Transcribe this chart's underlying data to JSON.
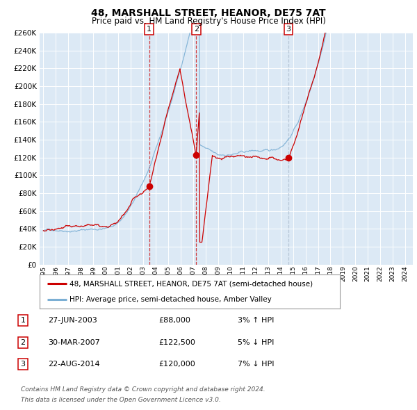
{
  "title": "48, MARSHALL STREET, HEANOR, DE75 7AT",
  "subtitle": "Price paid vs. HM Land Registry's House Price Index (HPI)",
  "plot_bg_color": "#dce9f5",
  "red_line_color": "#cc0000",
  "blue_line_color": "#7bafd4",
  "sale_marker_color": "#cc0000",
  "ylim": [
    0,
    260000
  ],
  "yticks": [
    0,
    20000,
    40000,
    60000,
    80000,
    100000,
    120000,
    140000,
    160000,
    180000,
    200000,
    220000,
    240000,
    260000
  ],
  "sales": [
    {
      "date_num": 2003.48,
      "price": 88000,
      "label": "1",
      "vline_color": "#cc0000"
    },
    {
      "date_num": 2007.24,
      "price": 122500,
      "label": "2",
      "vline_color": "#cc0000"
    },
    {
      "date_num": 2014.64,
      "price": 120000,
      "label": "3",
      "vline_color": "#aabbcc"
    }
  ],
  "legend_entries": [
    {
      "label": "48, MARSHALL STREET, HEANOR, DE75 7AT (semi-detached house)",
      "color": "#cc0000"
    },
    {
      "label": "HPI: Average price, semi-detached house, Amber Valley",
      "color": "#7bafd4"
    }
  ],
  "table_rows": [
    {
      "num": "1",
      "date": "27-JUN-2003",
      "price": "£88,000",
      "pct": "3% ↑ HPI"
    },
    {
      "num": "2",
      "date": "30-MAR-2007",
      "price": "£122,500",
      "pct": "5% ↓ HPI"
    },
    {
      "num": "3",
      "date": "22-AUG-2014",
      "price": "£120,000",
      "pct": "7% ↓ HPI"
    }
  ],
  "footer": [
    "Contains HM Land Registry data © Crown copyright and database right 2024.",
    "This data is licensed under the Open Government Licence v3.0."
  ]
}
